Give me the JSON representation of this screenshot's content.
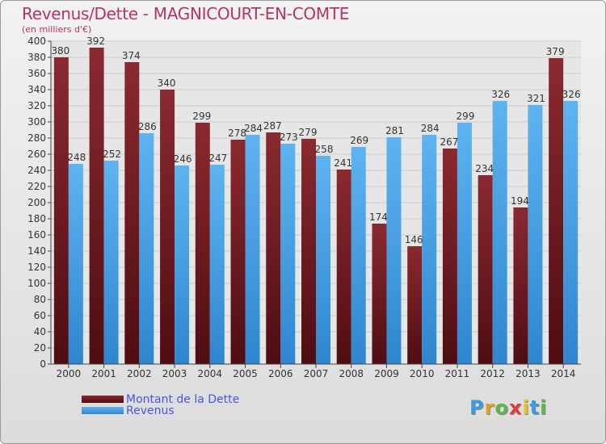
{
  "chart_data": {
    "type": "bar",
    "title": "Revenus/Dette - MAGNICOURT-EN-COMTE",
    "subtitle": "(en milliers d'€)",
    "categories": [
      "2000",
      "2001",
      "2002",
      "2003",
      "2004",
      "2005",
      "2006",
      "2007",
      "2008",
      "2009",
      "2010",
      "2011",
      "2012",
      "2013",
      "2014"
    ],
    "series": [
      {
        "name": "Montant de la Dette",
        "color": "#7a1c24",
        "values": [
          380,
          392,
          374,
          340,
          299,
          278,
          287,
          279,
          241,
          174,
          146,
          267,
          234,
          194,
          379
        ]
      },
      {
        "name": "Revenus",
        "color": "#4aa3e6",
        "values": [
          248,
          252,
          286,
          246,
          247,
          284,
          273,
          258,
          269,
          281,
          284,
          299,
          326,
          321,
          326
        ]
      }
    ],
    "ylim": [
      0,
      400
    ],
    "ytick_step": 20,
    "grid": true,
    "legend_position": "bottom-left"
  },
  "logo": {
    "letters": [
      "P",
      "r",
      "o",
      "x",
      "i",
      "t",
      "i"
    ],
    "colors": [
      "#3b9be0",
      "#e0a020",
      "#5cb848",
      "#e03c3c",
      "#f0c020",
      "#3b9be0",
      "#5cb848"
    ]
  }
}
